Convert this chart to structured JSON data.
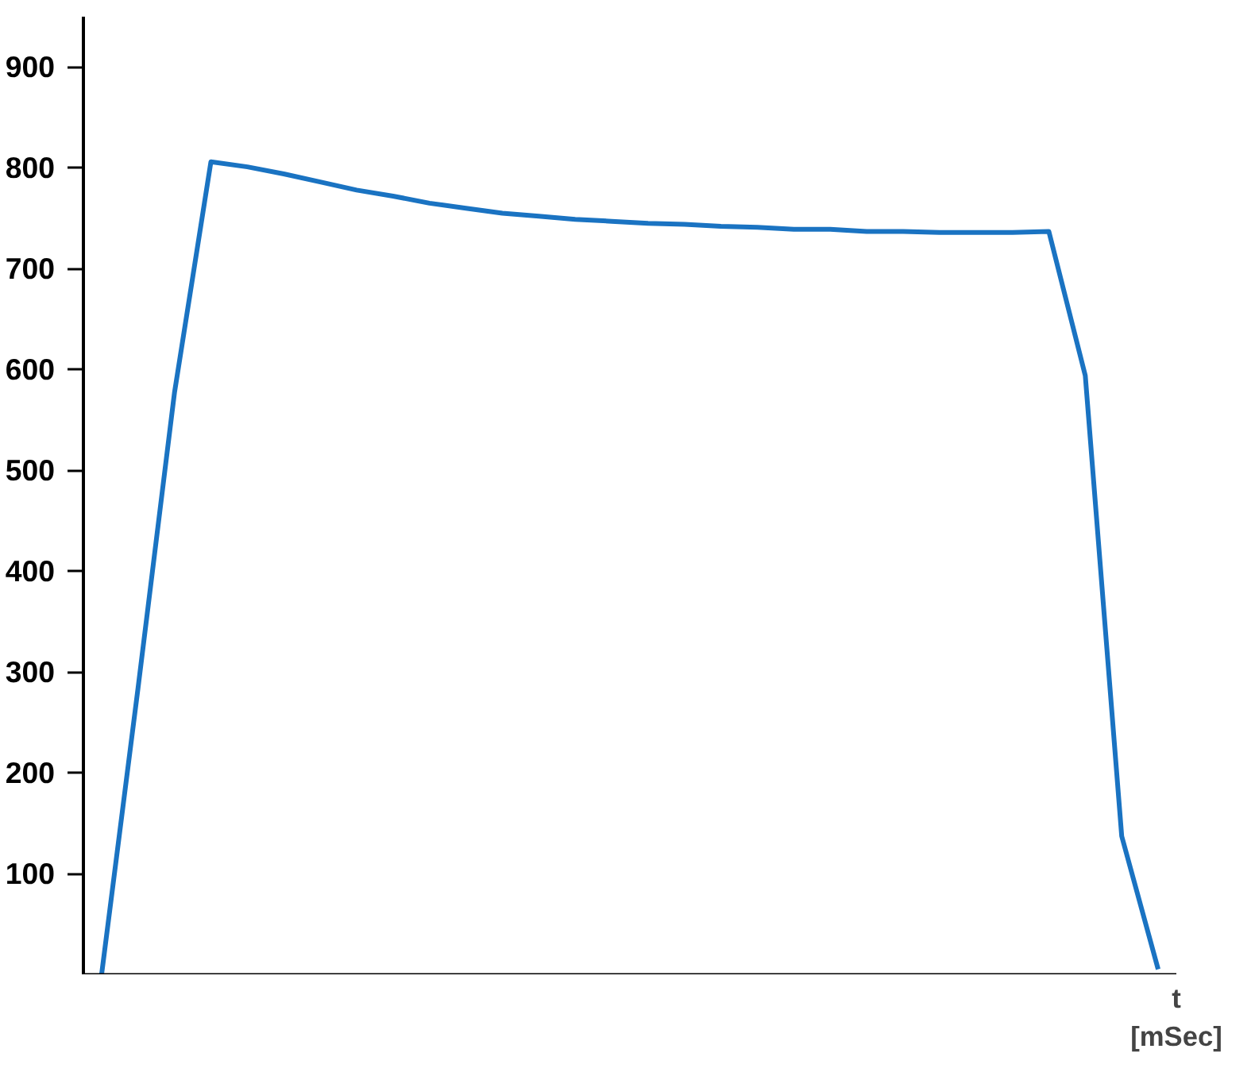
{
  "chart_data": {
    "type": "line",
    "xlabel": "t\n[mSec]",
    "categories": [
      null,
      null,
      null,
      null,
      null,
      null,
      null,
      null,
      null,
      null,
      null,
      null,
      null,
      null,
      null,
      null,
      null,
      null,
      null,
      null,
      null,
      null,
      null,
      null,
      null,
      null,
      null,
      null,
      null,
      null
    ],
    "series": [
      {
        "color": "#1a73c2",
        "values": [
          0,
          284,
          577,
          806,
          801,
          794,
          786,
          778,
          772,
          765,
          760,
          755,
          752,
          749,
          747,
          745,
          744,
          742,
          741,
          739,
          739,
          737,
          737,
          736,
          736,
          736,
          737,
          594,
          137,
          5
        ]
      }
    ],
    "ylim": [
      0,
      950
    ],
    "yticks": [
      100,
      200,
      300,
      400,
      500,
      600,
      700,
      800,
      900
    ],
    "tick_labels": "y",
    "grid": false,
    "marker": "none",
    "line_style": "solid"
  }
}
